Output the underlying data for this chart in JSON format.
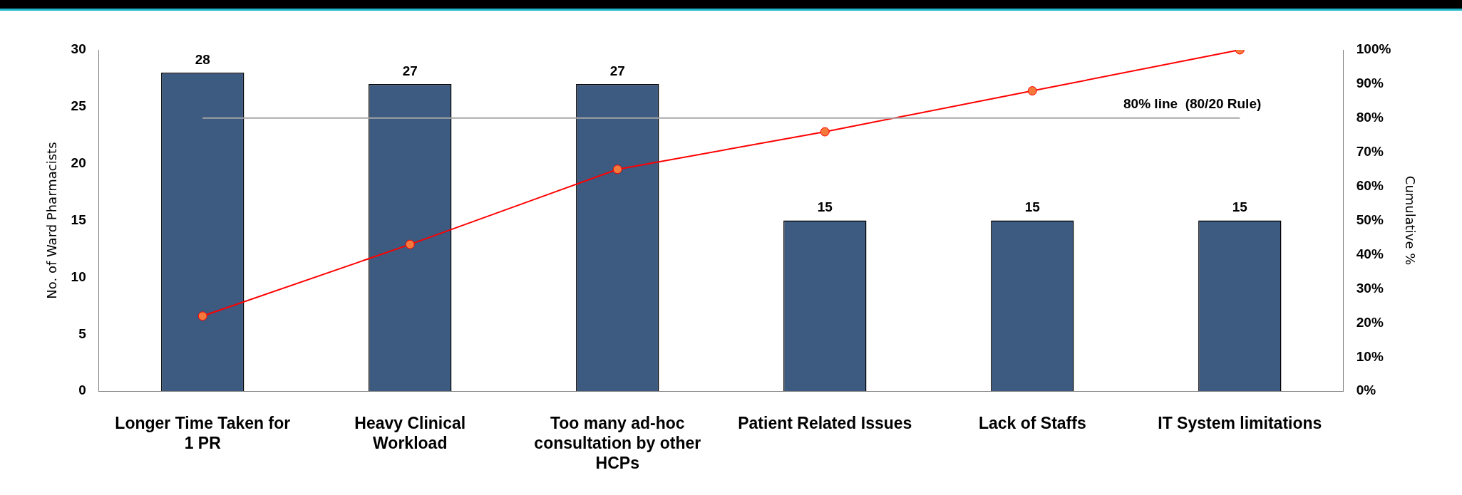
{
  "chart_data": {
    "type": "bar",
    "ylabel": "No. of Ward Pharmacists",
    "y2label": "Cumulative %",
    "categories": [
      "Longer Time Taken for 1 PR",
      "Heavy Clinical Workload",
      "Too many ad-hoc consultation by other HCPs",
      "Patient Related Issues",
      "Lack of Staffs",
      "IT System limitations"
    ],
    "series": [
      {
        "color": "#3d5a80",
        "values": [
          28,
          27,
          27,
          15,
          15,
          15
        ],
        "value_labels": [
          "28",
          "27",
          "27",
          "15",
          "15",
          "15"
        ]
      },
      {
        "type": "line",
        "axis": "y2",
        "color": "#ff0000",
        "marker": "circle",
        "values": [
          22,
          43,
          65,
          76,
          88,
          100
        ]
      }
    ],
    "ylim": [
      0,
      30
    ],
    "yticks": [
      0,
      5,
      10,
      15,
      20,
      25,
      30
    ],
    "y2lim": [
      0,
      100
    ],
    "y2ticks": [
      {
        "value": 0,
        "label": "0%"
      },
      {
        "value": 10,
        "label": "10%"
      },
      {
        "value": 20,
        "label": "20%"
      },
      {
        "value": 30,
        "label": "30%"
      },
      {
        "value": 40,
        "label": "40%"
      },
      {
        "value": 50,
        "label": "50%"
      },
      {
        "value": 60,
        "label": "60%"
      },
      {
        "value": 70,
        "label": "70%"
      },
      {
        "value": 80,
        "label": "80%"
      },
      {
        "value": 90,
        "label": "90%"
      },
      {
        "value": 100,
        "label": "100%"
      }
    ],
    "ref_lines": [
      {
        "axis": "y2",
        "value": 80,
        "label": "80% line  (80/20 Rule)",
        "color": "#a6a6a6"
      }
    ],
    "grid": false,
    "legend": false
  }
}
